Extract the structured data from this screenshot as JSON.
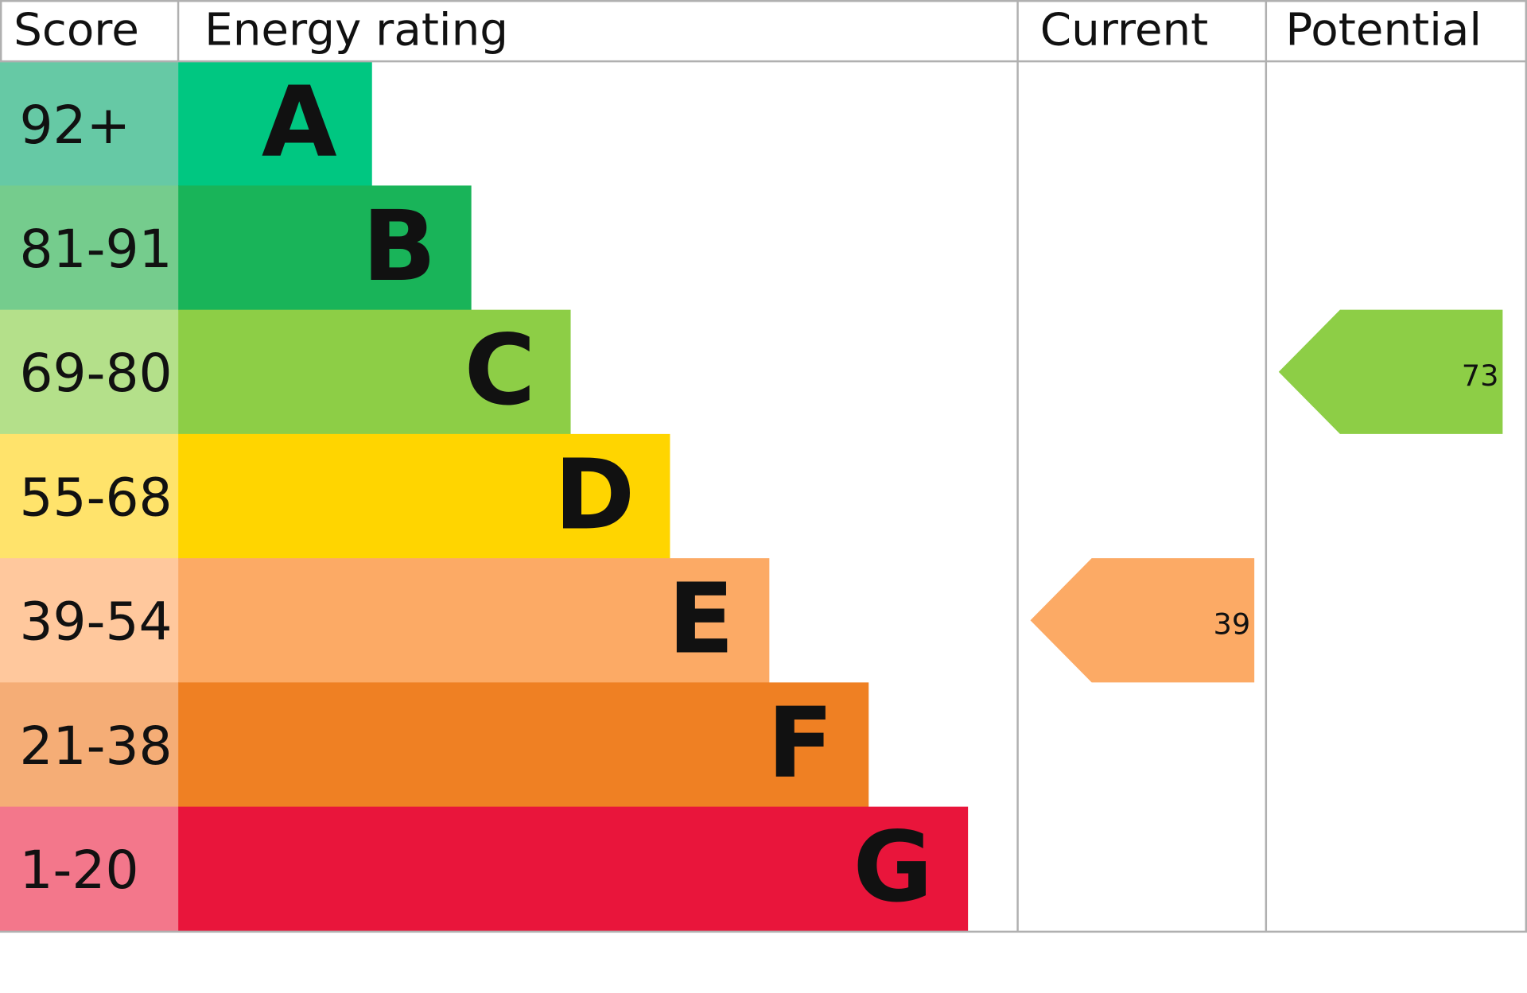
{
  "chart_data": {
    "type": "bar",
    "headers": {
      "score": "Score",
      "rating": "Energy rating",
      "current": "Current",
      "potential": "Potential"
    },
    "bands": [
      {
        "letter": "A",
        "range": "92+",
        "color": "#00c781",
        "score_color": "#66c9a5"
      },
      {
        "letter": "B",
        "range": "81-91",
        "color": "#19b459",
        "score_color": "#75cc8d"
      },
      {
        "letter": "C",
        "range": "69-80",
        "color": "#8dce46",
        "score_color": "#b4e08a"
      },
      {
        "letter": "D",
        "range": "55-68",
        "color": "#ffd500",
        "score_color": "#ffe36b"
      },
      {
        "letter": "E",
        "range": "39-54",
        "color": "#fcaa65",
        "score_color": "#ffc89d"
      },
      {
        "letter": "F",
        "range": "21-38",
        "color": "#ef8023",
        "score_color": "#f5ad76"
      },
      {
        "letter": "G",
        "range": "1-20",
        "color": "#e9153b",
        "score_color": "#f3778b"
      }
    ],
    "current": {
      "value": "39",
      "band": "E"
    },
    "potential": {
      "value": "73",
      "band": "C"
    }
  }
}
